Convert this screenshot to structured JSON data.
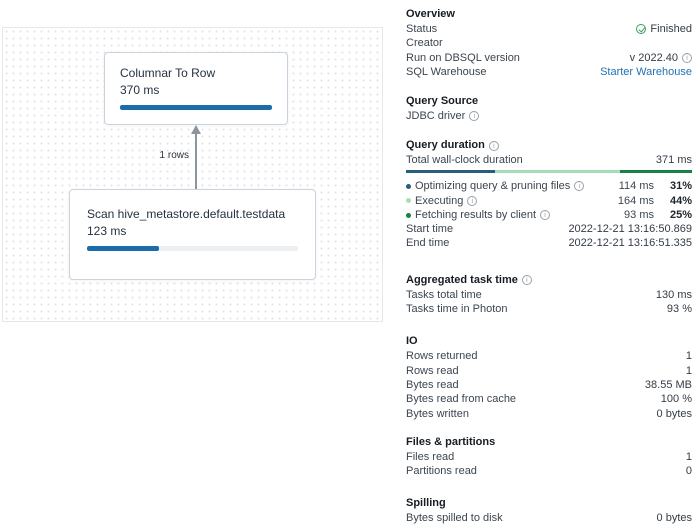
{
  "colors": {
    "node_bar_blue": "#1b6ca8",
    "link_blue": "#2272b4",
    "status_green": "#3c9e62",
    "seg_blue": "#265e7e",
    "seg_light_green": "#a8dbb8",
    "seg_dark_green": "#17814a"
  },
  "dag": {
    "edge_label": "1 rows",
    "node1": {
      "title": "Columnar To Row",
      "duration": "370 ms",
      "progress_pct": 100
    },
    "node2": {
      "title": "Scan hive_metastore.default.testdata",
      "duration": "123 ms",
      "progress_pct": 34
    }
  },
  "overview": {
    "title": "Overview",
    "status_label": "Status",
    "status_value": "Finished",
    "creator_label": "Creator",
    "creator_value": "",
    "dbsql_label": "Run on DBSQL version",
    "dbsql_value": "v 2022.40",
    "warehouse_label": "SQL Warehouse",
    "warehouse_value": "Starter Warehouse"
  },
  "query_source": {
    "title": "Query Source",
    "value": "JDBC driver"
  },
  "query_duration": {
    "title": "Query duration",
    "total_label": "Total wall-clock duration",
    "total_value": "371 ms",
    "segments": [
      {
        "pct": 31,
        "color": "#265e7e"
      },
      {
        "pct": 44,
        "color": "#a8dbb8"
      },
      {
        "pct": 25,
        "color": "#17814a"
      }
    ],
    "rows": [
      {
        "label": "Optimizing query & pruning files",
        "ms": "114 ms",
        "pct": "31%",
        "color": "#265e7e"
      },
      {
        "label": "Executing",
        "ms": "164 ms",
        "pct": "44%",
        "color": "#a8dbb8"
      },
      {
        "label": "Fetching results by client",
        "ms": "93 ms",
        "pct": "25%",
        "color": "#17814a"
      }
    ],
    "start_label": "Start time",
    "start_value": "2022-12-21 13:16:50.869",
    "end_label": "End time",
    "end_value": "2022-12-21 13:16:51.335"
  },
  "aggregated": {
    "title": "Aggregated task time",
    "rows": [
      {
        "label": "Tasks total time",
        "value": "130 ms"
      },
      {
        "label": "Tasks time in Photon",
        "value": "93 %"
      }
    ]
  },
  "io": {
    "title": "IO",
    "rows": [
      {
        "label": "Rows returned",
        "value": "1"
      },
      {
        "label": "Rows read",
        "value": "1"
      },
      {
        "label": "Bytes read",
        "value": "38.55 MB"
      },
      {
        "label": "Bytes read from cache",
        "value": "100 %"
      },
      {
        "label": "Bytes written",
        "value": "0 bytes"
      }
    ]
  },
  "files": {
    "title": "Files & partitions",
    "rows": [
      {
        "label": "Files read",
        "value": "1"
      },
      {
        "label": "Partitions read",
        "value": "0"
      }
    ]
  },
  "spilling": {
    "title": "Spilling",
    "rows": [
      {
        "label": "Bytes spilled to disk",
        "value": "0 bytes"
      }
    ]
  }
}
